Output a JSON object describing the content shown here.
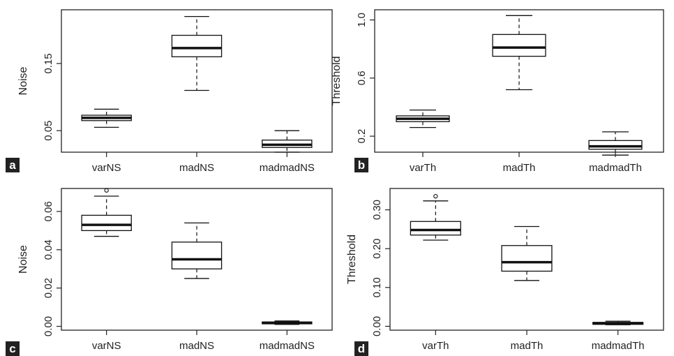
{
  "colors": {
    "box_line": "#111111",
    "frame": "#222222",
    "tag_bg": "#222222",
    "tag_text": "#ffffff"
  },
  "chart_data": [
    {
      "type": "boxplot",
      "panel_label": "a",
      "ylabel": "Noise",
      "ylim": [
        0.018,
        0.23
      ],
      "yticks": [
        0.05,
        0.15
      ],
      "ytick_labels": [
        "0.05",
        "0.15"
      ],
      "categories": [
        "varNS",
        "madNS",
        "madmadNS"
      ],
      "boxes": [
        {
          "category": "varNS",
          "whisker_low": 0.055,
          "q1": 0.065,
          "median": 0.069,
          "q3": 0.073,
          "whisker_high": 0.082,
          "outliers": []
        },
        {
          "category": "madNS",
          "whisker_low": 0.11,
          "q1": 0.16,
          "median": 0.173,
          "q3": 0.192,
          "whisker_high": 0.22,
          "outliers": []
        },
        {
          "category": "madmadNS",
          "whisker_low": 0.018,
          "q1": 0.025,
          "median": 0.029,
          "q3": 0.036,
          "whisker_high": 0.05,
          "outliers": []
        }
      ]
    },
    {
      "type": "boxplot",
      "panel_label": "b",
      "ylabel": "Threshold",
      "ylim": [
        0.09,
        1.07
      ],
      "yticks": [
        0.2,
        0.6,
        1.0
      ],
      "ytick_labels": [
        "0.2",
        "0.6",
        "1.0"
      ],
      "categories": [
        "varTh",
        "madTh",
        "madmadTh"
      ],
      "boxes": [
        {
          "category": "varTh",
          "whisker_low": 0.26,
          "q1": 0.3,
          "median": 0.32,
          "q3": 0.34,
          "whisker_high": 0.38,
          "outliers": []
        },
        {
          "category": "madTh",
          "whisker_low": 0.52,
          "q1": 0.75,
          "median": 0.81,
          "q3": 0.9,
          "whisker_high": 1.03,
          "outliers": []
        },
        {
          "category": "madmadTh",
          "whisker_low": 0.07,
          "q1": 0.11,
          "median": 0.13,
          "q3": 0.17,
          "whisker_high": 0.23,
          "outliers": []
        }
      ]
    },
    {
      "type": "boxplot",
      "panel_label": "c",
      "ylabel": "Noise",
      "ylim": [
        -0.002,
        0.072
      ],
      "yticks": [
        0.0,
        0.02,
        0.04,
        0.06
      ],
      "ytick_labels": [
        "0.00",
        "0.02",
        "0.04",
        "0.06"
      ],
      "categories": [
        "varNS",
        "madNS",
        "madmadNS"
      ],
      "boxes": [
        {
          "category": "varNS",
          "whisker_low": 0.047,
          "q1": 0.05,
          "median": 0.053,
          "q3": 0.058,
          "whisker_high": 0.068,
          "outliers": [
            0.071
          ]
        },
        {
          "category": "madNS",
          "whisker_low": 0.025,
          "q1": 0.03,
          "median": 0.035,
          "q3": 0.044,
          "whisker_high": 0.054,
          "outliers": []
        },
        {
          "category": "madmadNS",
          "whisker_low": 0.001,
          "q1": 0.0013,
          "median": 0.0018,
          "q3": 0.0023,
          "whisker_high": 0.0028,
          "outliers": []
        }
      ]
    },
    {
      "type": "boxplot",
      "panel_label": "d",
      "ylabel": "Threshold",
      "ylim": [
        -0.01,
        0.355
      ],
      "yticks": [
        0.0,
        0.1,
        0.2,
        0.3
      ],
      "ytick_labels": [
        "0.00",
        "0.10",
        "0.20",
        "0.30"
      ],
      "categories": [
        "varTh",
        "madTh",
        "madmadTh"
      ],
      "boxes": [
        {
          "category": "varTh",
          "whisker_low": 0.222,
          "q1": 0.235,
          "median": 0.248,
          "q3": 0.27,
          "whisker_high": 0.323,
          "outliers": [
            0.335
          ]
        },
        {
          "category": "madTh",
          "whisker_low": 0.118,
          "q1": 0.142,
          "median": 0.165,
          "q3": 0.208,
          "whisker_high": 0.257,
          "outliers": []
        },
        {
          "category": "madmadTh",
          "whisker_low": 0.004,
          "q1": 0.005,
          "median": 0.008,
          "q3": 0.01,
          "whisker_high": 0.013,
          "outliers": []
        }
      ]
    }
  ]
}
